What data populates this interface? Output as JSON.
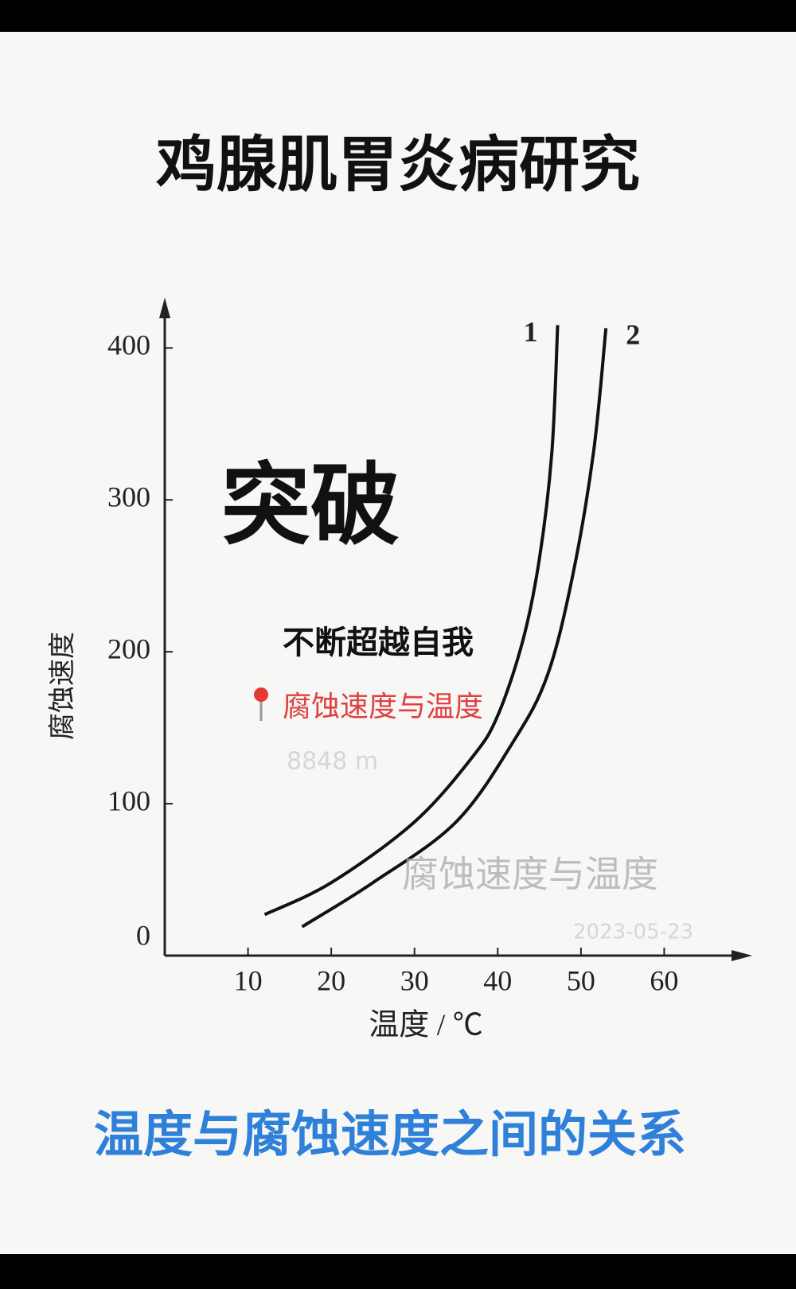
{
  "chart_data": {
    "type": "line",
    "title": "鸡腺肌胃炎病研究",
    "caption": "温度与腐蚀速度之间的关系",
    "x_label": "温度 / ℃",
    "y_label": "腐蚀速度",
    "xlim": [
      0,
      70
    ],
    "xticks": [
      10,
      20,
      30,
      40,
      50,
      60
    ],
    "ylim": [
      0,
      430
    ],
    "yticks": [
      0,
      100,
      200,
      300,
      400
    ],
    "series": [
      {
        "name": "1",
        "color": "#111111",
        "x": [
          12,
          20,
          30,
          37,
          40,
          43,
          45,
          46.5,
          47.2
        ],
        "values": [
          27,
          48,
          88,
          131,
          158,
          207,
          261,
          331,
          415
        ]
      },
      {
        "name": "2",
        "color": "#111111",
        "x": [
          16.5,
          25,
          35,
          42,
          46,
          49,
          51.5,
          53
        ],
        "values": [
          19,
          48,
          88,
          142,
          185,
          250,
          331,
          413
        ]
      }
    ],
    "annotations": [
      "突破",
      "不断超越自我",
      "腐蚀速度与温度",
      "8848 m",
      "腐蚀速度与温度",
      "2023-05-23"
    ]
  }
}
